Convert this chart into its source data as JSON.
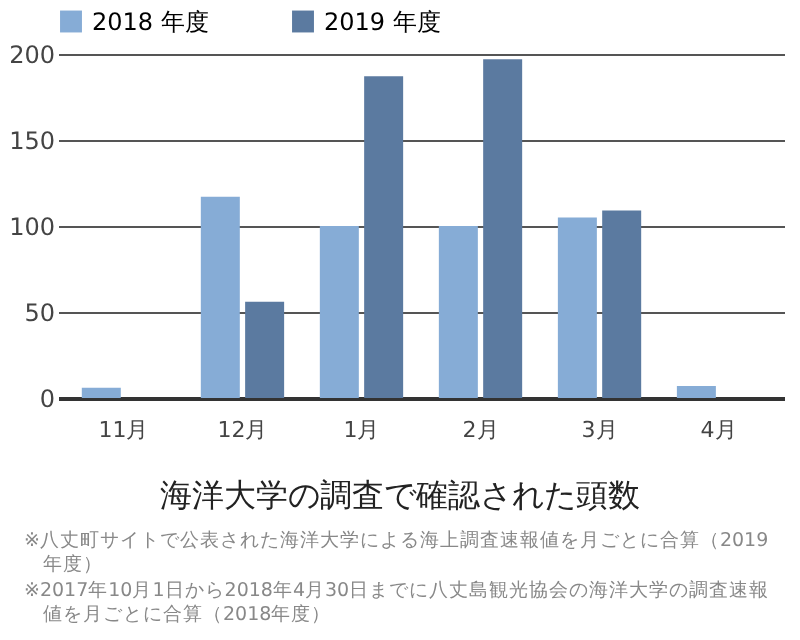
{
  "chart_data": {
    "type": "bar",
    "title": "海洋大学の調査で確認された頭数",
    "categories": [
      "11月",
      "12月",
      "1月",
      "2月",
      "3月",
      "4月"
    ],
    "series": [
      {
        "name": "2018 年度",
        "color": "#86acd6",
        "values": [
          6,
          117,
          100,
          100,
          105,
          7
        ]
      },
      {
        "name": "2019 年度",
        "color": "#5b7aa0",
        "values": [
          null,
          56,
          187,
          197,
          109,
          null
        ]
      }
    ],
    "ylim": [
      0,
      200
    ],
    "yticks": [
      0,
      50,
      100,
      150,
      200
    ],
    "grid": "y",
    "legend": "top left",
    "annotations": [
      "※八丈町サイトで公表された海洋大学による海上調査速報値を月ごとに合算（2019年度）",
      "※2017年10月1日から2018年4月30日までに八丈島観光協会の海洋大学の調査速報値を月ごとに合算（2018年度）"
    ]
  }
}
